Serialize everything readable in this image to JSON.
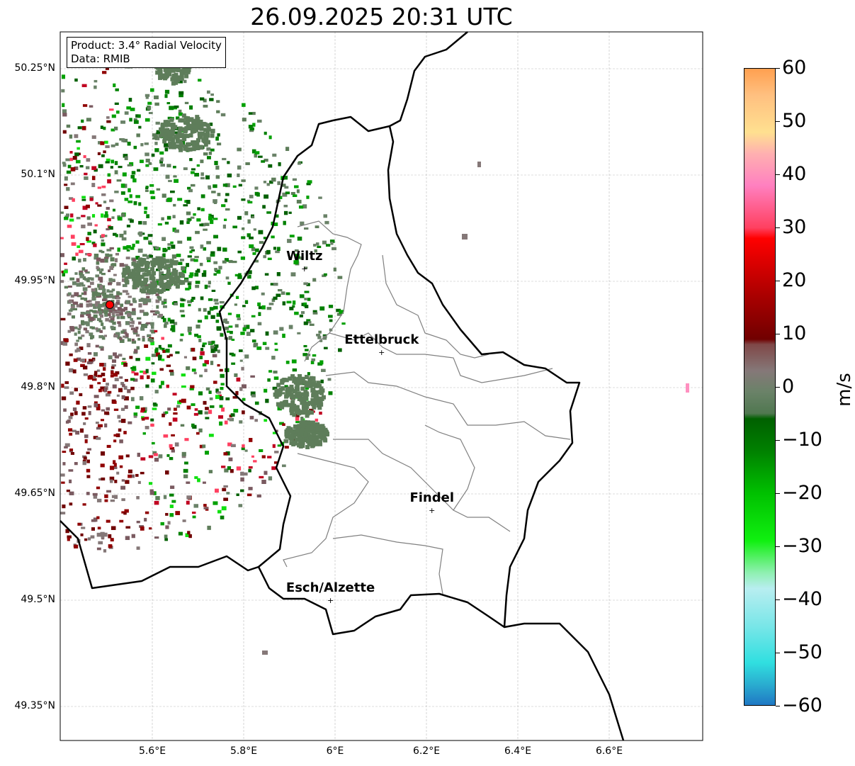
{
  "title": "26.09.2025 20:31 UTC",
  "info": {
    "product": "Product: 3.4° Radial Velocity",
    "data": "Data: RMIB"
  },
  "lat_ticks": [
    {
      "v": 50.25,
      "label": "50.25°N"
    },
    {
      "v": 50.1,
      "label": "50.1°N"
    },
    {
      "v": 49.95,
      "label": "49.95°N"
    },
    {
      "v": 49.8,
      "label": "49.8°N"
    },
    {
      "v": 49.65,
      "label": "49.65°N"
    },
    {
      "v": 49.5,
      "label": "49.5°N"
    },
    {
      "v": 49.35,
      "label": "49.35°N"
    }
  ],
  "lon_ticks": [
    {
      "v": 5.6,
      "label": "5.6°E"
    },
    {
      "v": 5.8,
      "label": "5.8°E"
    },
    {
      "v": 6.0,
      "label": "6°E"
    },
    {
      "v": 6.2,
      "label": "6.2°E"
    },
    {
      "v": 6.4,
      "label": "6.4°E"
    },
    {
      "v": 6.6,
      "label": "6.6°E"
    }
  ],
  "extent": {
    "lon": [
      5.4,
      6.806
    ],
    "lat": [
      49.298,
      50.298
    ]
  },
  "cities": [
    {
      "name": "Wiltz",
      "lon": 5.933,
      "lat": 49.968
    },
    {
      "name": "Ettelbruck",
      "lon": 6.102,
      "lat": 49.85
    },
    {
      "name": "Findel",
      "lon": 6.212,
      "lat": 49.627
    },
    {
      "name": "Esch/Alzette",
      "lon": 5.99,
      "lat": 49.5
    }
  ],
  "radar_site": {
    "lon": 5.507,
    "lat": 49.917,
    "color": "#ff0000"
  },
  "colorbar": {
    "label": "m/s",
    "min": -60,
    "max": 60,
    "ticks": [
      {
        "v": 60,
        "label": "60"
      },
      {
        "v": 50,
        "label": "50"
      },
      {
        "v": 40,
        "label": "40"
      },
      {
        "v": 30,
        "label": "30"
      },
      {
        "v": 20,
        "label": "20"
      },
      {
        "v": 10,
        "label": "10"
      },
      {
        "v": 0,
        "label": "0"
      },
      {
        "v": -10,
        "label": "−10"
      },
      {
        "v": -20,
        "label": "−20"
      },
      {
        "v": -30,
        "label": "−30"
      },
      {
        "v": -40,
        "label": "−40"
      },
      {
        "v": -50,
        "label": "−50"
      },
      {
        "v": -60,
        "label": "−60"
      }
    ],
    "stops": [
      [
        -60,
        "#1f78c4"
      ],
      [
        -56,
        "#2aaed0"
      ],
      [
        -52,
        "#30dfe0"
      ],
      [
        -45,
        "#7ae6e8"
      ],
      [
        -38,
        "#b8eef0"
      ],
      [
        -35,
        "#8ef0b0"
      ],
      [
        -32,
        "#50f060"
      ],
      [
        -29,
        "#10f010"
      ],
      [
        -20,
        "#00c000"
      ],
      [
        -12,
        "#008000"
      ],
      [
        -6,
        "#006000"
      ],
      [
        -5,
        "#507850"
      ],
      [
        -1,
        "#6a8268"
      ],
      [
        3,
        "#857878"
      ],
      [
        8,
        "#804848"
      ],
      [
        9,
        "#700000"
      ],
      [
        18,
        "#b00000"
      ],
      [
        28,
        "#ff0000"
      ],
      [
        30,
        "#ff4060"
      ],
      [
        38,
        "#ff80c0"
      ],
      [
        44,
        "#ffb0b0"
      ],
      [
        48,
        "#ffe090"
      ],
      [
        55,
        "#ffc080"
      ],
      [
        60,
        "#ffa050"
      ]
    ]
  }
}
